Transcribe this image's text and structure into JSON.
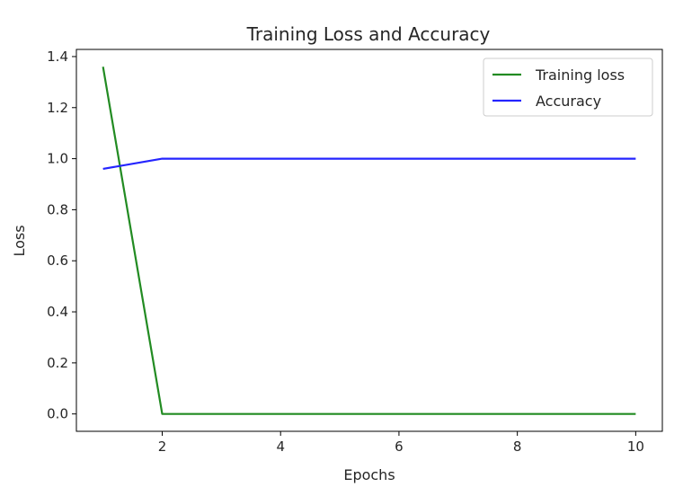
{
  "chart_data": {
    "type": "line",
    "title": "Training Loss and Accuracy",
    "xlabel": "Epochs",
    "ylabel": "Loss",
    "x": [
      1,
      2,
      3,
      4,
      5,
      6,
      7,
      8,
      9,
      10
    ],
    "series": [
      {
        "name": "Training loss",
        "color": "#228b22",
        "values": [
          1.36,
          0.0,
          0.0,
          0.0,
          0.0,
          0.0,
          0.0,
          0.0,
          0.0,
          0.0
        ]
      },
      {
        "name": "Accuracy",
        "color": "#2424ff",
        "values": [
          0.96,
          1.0,
          1.0,
          1.0,
          1.0,
          1.0,
          1.0,
          1.0,
          1.0,
          1.0
        ]
      }
    ],
    "xlim": [
      0.55,
      10.45
    ],
    "ylim": [
      -0.068,
      1.428
    ],
    "xticks": [
      2,
      4,
      6,
      8,
      10
    ],
    "yticks": [
      0.0,
      0.2,
      0.4,
      0.6,
      0.8,
      1.0,
      1.2,
      1.4
    ],
    "grid": false,
    "legend_position": "top-right"
  }
}
